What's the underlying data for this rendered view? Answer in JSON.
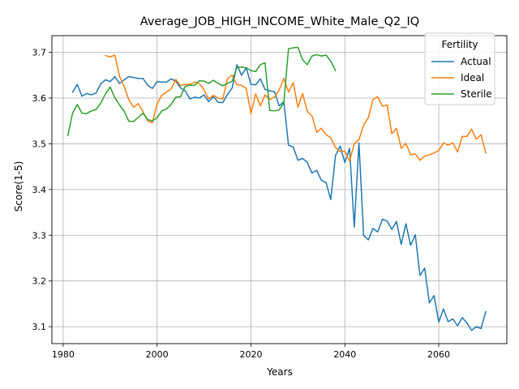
{
  "chart_data": {
    "type": "line",
    "title": "Average_JOB_HIGH_INCOME_White_Male_Q2_IQ",
    "xlabel": "Years",
    "ylabel": "Score(1-5)",
    "xlim": [
      1977.6,
      2074.5
    ],
    "ylim": [
      3.063,
      3.7365
    ],
    "xticks": [
      1980,
      2000,
      2020,
      2040,
      2060
    ],
    "yticks": [
      3.1,
      3.2,
      3.3,
      3.4,
      3.5,
      3.6,
      3.7
    ],
    "grid": true,
    "legend": {
      "title": "Fertility",
      "placement": "top-right"
    },
    "series": [
      {
        "name": "Actual",
        "color": "#1f77b4",
        "x": [
          1982,
          1983,
          1984,
          1985,
          1986,
          1987,
          1988,
          1989,
          1990,
          1991,
          1992,
          1993,
          1994,
          1995,
          1996,
          1997,
          1998,
          1999,
          2000,
          2001,
          2002,
          2003,
          2004,
          2005,
          2006,
          2007,
          2008,
          2009,
          2010,
          2011,
          2012,
          2013,
          2014,
          2015,
          2016,
          2017,
          2018,
          2019,
          2020,
          2021,
          2022,
          2023,
          2024,
          2025,
          2026,
          2027,
          2028,
          2029,
          2030,
          2031,
          2032,
          2033,
          2034,
          2035,
          2036,
          2037,
          2038,
          2039,
          2040,
          2041,
          2042,
          2043,
          2044,
          2045,
          2046,
          2047,
          2048,
          2049,
          2050,
          2051,
          2052,
          2053,
          2054,
          2055,
          2056,
          2057,
          2058,
          2059,
          2060,
          2061,
          2062,
          2063,
          2064,
          2065,
          2066,
          2067,
          2068,
          2069,
          2070
        ],
        "y": [
          3.613,
          3.63,
          3.604,
          3.61,
          3.607,
          3.611,
          3.631,
          3.64,
          3.636,
          3.647,
          3.632,
          3.64,
          3.647,
          3.645,
          3.643,
          3.643,
          3.628,
          3.621,
          3.636,
          3.635,
          3.635,
          3.642,
          3.637,
          3.622,
          3.616,
          3.598,
          3.602,
          3.6,
          3.607,
          3.592,
          3.603,
          3.591,
          3.59,
          3.608,
          3.622,
          3.673,
          3.65,
          3.666,
          3.63,
          3.629,
          3.642,
          3.619,
          3.616,
          3.614,
          3.583,
          3.592,
          3.497,
          3.493,
          3.464,
          3.468,
          3.459,
          3.436,
          3.442,
          3.42,
          3.415,
          3.378,
          3.474,
          3.495,
          3.459,
          3.49,
          3.318,
          3.502,
          3.3,
          3.29,
          3.315,
          3.307,
          3.335,
          3.331,
          3.313,
          3.33,
          3.28,
          3.325,
          3.278,
          3.301,
          3.212,
          3.228,
          3.152,
          3.168,
          3.11,
          3.139,
          3.111,
          3.117,
          3.102,
          3.12,
          3.108,
          3.092,
          3.1,
          3.096,
          3.133
        ]
      },
      {
        "name": "Ideal",
        "color": "#ff7f0e",
        "x": [
          1989,
          1990,
          1991,
          1992,
          1993,
          1994,
          1995,
          1996,
          1997,
          1998,
          1999,
          2000,
          2001,
          2002,
          2003,
          2004,
          2005,
          2006,
          2007,
          2008,
          2009,
          2010,
          2011,
          2012,
          2013,
          2014,
          2015,
          2016,
          2017,
          2018,
          2019,
          2020,
          2021,
          2022,
          2023,
          2024,
          2025,
          2026,
          2027,
          2028,
          2029,
          2030,
          2031,
          2032,
          2033,
          2034,
          2035,
          2036,
          2037,
          2038,
          2039,
          2040,
          2041,
          2042,
          2043,
          2044,
          2045,
          2046,
          2047,
          2048,
          2049,
          2050,
          2051,
          2052,
          2053,
          2054,
          2055,
          2056,
          2057,
          2058,
          2059,
          2060,
          2061,
          2062,
          2063,
          2064,
          2065,
          2066,
          2067,
          2068,
          2069,
          2070
        ],
        "y": [
          3.693,
          3.69,
          3.694,
          3.648,
          3.625,
          3.596,
          3.58,
          3.588,
          3.57,
          3.55,
          3.546,
          3.587,
          3.606,
          3.613,
          3.62,
          3.641,
          3.627,
          3.63,
          3.63,
          3.635,
          3.632,
          3.618,
          3.598,
          3.606,
          3.6,
          3.598,
          3.643,
          3.65,
          3.629,
          3.628,
          3.621,
          3.566,
          3.609,
          3.583,
          3.607,
          3.597,
          3.602,
          3.618,
          3.643,
          3.613,
          3.634,
          3.58,
          3.61,
          3.571,
          3.561,
          3.525,
          3.534,
          3.52,
          3.513,
          3.492,
          3.483,
          3.484,
          3.462,
          3.5,
          3.509,
          3.541,
          3.557,
          3.597,
          3.603,
          3.582,
          3.585,
          3.522,
          3.534,
          3.49,
          3.501,
          3.476,
          3.478,
          3.464,
          3.473,
          3.476,
          3.48,
          3.485,
          3.502,
          3.497,
          3.502,
          3.482,
          3.516,
          3.516,
          3.532,
          3.51,
          3.52,
          3.48
        ]
      },
      {
        "name": "Sterile",
        "color": "#2ca02c",
        "x": [
          1981,
          1982,
          1983,
          1984,
          1985,
          1986,
          1987,
          1988,
          1989,
          1990,
          1991,
          1992,
          1993,
          1994,
          1995,
          1996,
          1997,
          1998,
          1999,
          2000,
          2001,
          2002,
          2003,
          2004,
          2005,
          2006,
          2007,
          2008,
          2009,
          2010,
          2011,
          2012,
          2013,
          2014,
          2015,
          2016,
          2017,
          2018,
          2019,
          2020,
          2021,
          2022,
          2023,
          2024,
          2025,
          2026,
          2027,
          2028,
          2029,
          2030,
          2031,
          2032,
          2033,
          2034,
          2035,
          2036,
          2037,
          2038
        ],
        "y": [
          3.518,
          3.567,
          3.586,
          3.567,
          3.566,
          3.572,
          3.575,
          3.589,
          3.609,
          3.624,
          3.601,
          3.585,
          3.571,
          3.549,
          3.549,
          3.558,
          3.567,
          3.553,
          3.55,
          3.557,
          3.572,
          3.576,
          3.586,
          3.602,
          3.603,
          3.626,
          3.628,
          3.628,
          3.638,
          3.637,
          3.632,
          3.639,
          3.632,
          3.627,
          3.632,
          3.637,
          3.667,
          3.668,
          3.666,
          3.66,
          3.658,
          3.673,
          3.677,
          3.573,
          3.572,
          3.574,
          3.59,
          3.708,
          3.71,
          3.711,
          3.684,
          3.673,
          3.692,
          3.695,
          3.692,
          3.694,
          3.681,
          3.66
        ]
      }
    ]
  }
}
